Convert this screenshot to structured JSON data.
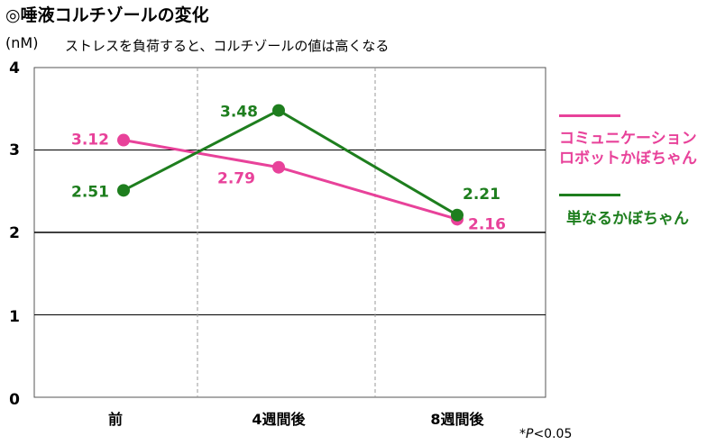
{
  "title": "◎唾液コルチゾールの変化",
  "unit": "(nM)",
  "subtitle": "ストレスを負荷すると、コルチゾールの値は高くなる",
  "note_prefix": "*",
  "note_p": "P",
  "note_value": "<0.05",
  "colors": {
    "pink": "#e8429a",
    "green": "#1e7e1e"
  },
  "chart_data": {
    "type": "line",
    "categories": [
      "前",
      "4週間後",
      "8週間後"
    ],
    "ylim": [
      0,
      4
    ],
    "yticks": [
      "0",
      "1",
      "2",
      "3",
      "4"
    ],
    "grid": true,
    "legend_position": "right",
    "series": [
      {
        "name": "コミュニケーション",
        "name_line2": "ロボットかぼちゃん",
        "color": "#e8429a",
        "values": [
          3.12,
          2.79,
          2.16
        ],
        "labels": [
          "3.12",
          "2.79",
          "2.16"
        ]
      },
      {
        "name": "単なるかぼちゃん",
        "color": "#1e7e1e",
        "values": [
          2.51,
          3.48,
          2.21
        ],
        "labels": [
          "2.51",
          "3.48",
          "2.21"
        ]
      }
    ]
  }
}
